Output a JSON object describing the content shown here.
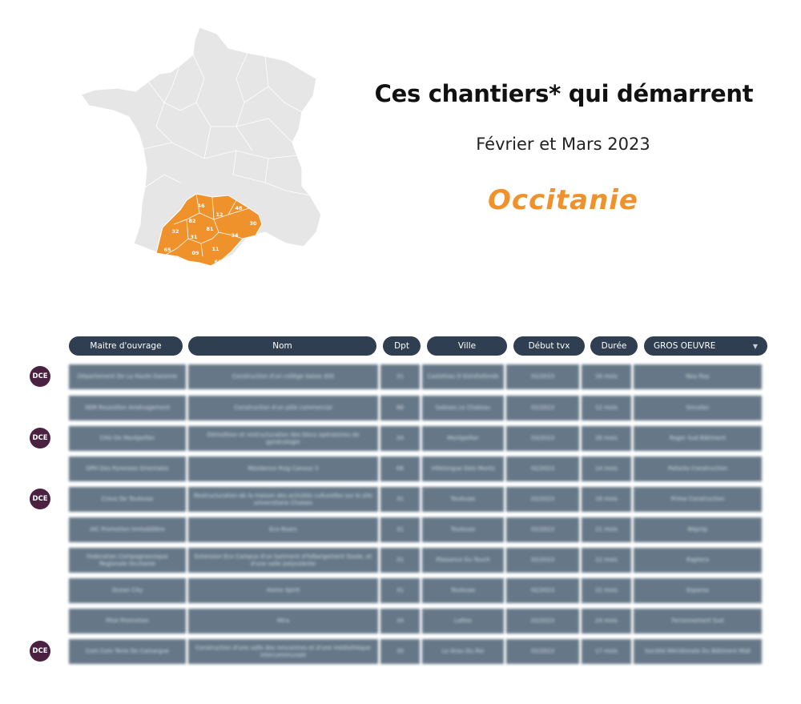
{
  "header": {
    "title": "Ces chantiers* qui démarrent",
    "subtitle": "Février et Mars 2023",
    "region": "Occitanie"
  },
  "map": {
    "highlight_color": "#f0922b",
    "base_color": "#e6e6e6",
    "departments": [
      "46",
      "48",
      "12",
      "82",
      "30",
      "81",
      "32",
      "34",
      "31",
      "65",
      "09",
      "11",
      "66"
    ]
  },
  "table": {
    "columns": [
      "Maitre d'ouvrage",
      "Nom",
      "Dpt",
      "Ville",
      "Début tvx",
      "Durée"
    ],
    "filter": {
      "selected": "GROS OEUVRE"
    },
    "badge_label": "DCE",
    "rows": [
      {
        "badge": true,
        "cells": [
          "Département De La Haute Garonne",
          "Construction d'un collège basse 300",
          "31",
          "Castelnau D Estrétefonds",
          "02/2023",
          "16 mois",
          "Nea Ray"
        ]
      },
      {
        "badge": false,
        "cells": [
          "SEM Roussillon Aménagement",
          "Construction d'un pôle commercial",
          "66",
          "Saleses Le Chateau",
          "02/2023",
          "12 mois",
          "Sincelec"
        ]
      },
      {
        "badge": true,
        "cells": [
          "CHU De Montpellier",
          "Démolition et restructuration des blocs opératoires de gynécologie",
          "34",
          "Montpellier",
          "03/2023",
          "26 mois",
          "Roger Sud Bâtiment"
        ]
      },
      {
        "badge": false,
        "cells": [
          "OPH Des Pyrenees Orientales",
          "Résidence Puig Canouz 3",
          "66",
          "Villelongue Dels Monts",
          "02/2023",
          "14 mois",
          "Pallarès Construction"
        ]
      },
      {
        "badge": true,
        "cells": [
          "Crous De Toulouse",
          "Restructuration de la maison des activités culturelles sur le site universitaire Chaises",
          "31",
          "Toulouse",
          "02/2023",
          "18 mois",
          "Prima Construction"
        ]
      },
      {
        "badge": false,
        "cells": [
          "AIC Promotion Immobilière",
          "Eco Roars",
          "31",
          "Toulouse",
          "02/2023",
          "21 mois",
          "Bépnip"
        ]
      },
      {
        "badge": false,
        "cells": [
          "Federation Compagnonnique Regionale Occitanie",
          "Extension Eco Campus d'un batiment d'hébergement Gaale, et d'une salle polyvalente",
          "31",
          "Plaisance Du Touch",
          "02/2023",
          "12 mois",
          "Raptera"
        ]
      },
      {
        "badge": false,
        "cells": [
          "Ocean City",
          "Home Spirit",
          "31",
          "Toulouse",
          "02/2023",
          "22 mois",
          "Esparsa"
        ]
      },
      {
        "badge": false,
        "cells": [
          "Pitot Promotion",
          "Mira",
          "34",
          "Lattes",
          "02/2023",
          "24 mois",
          "Ferronnement Sud"
        ]
      },
      {
        "badge": true,
        "cells": [
          "Com Com Terre De Camargue",
          "Construction d'une salle des rencontres et d'une médiathèque intercommunale",
          "30",
          "Le Grau Du Roi",
          "02/2023",
          "17 mois",
          "Société Méridionale Du Bâtiment Midi"
        ]
      }
    ]
  }
}
